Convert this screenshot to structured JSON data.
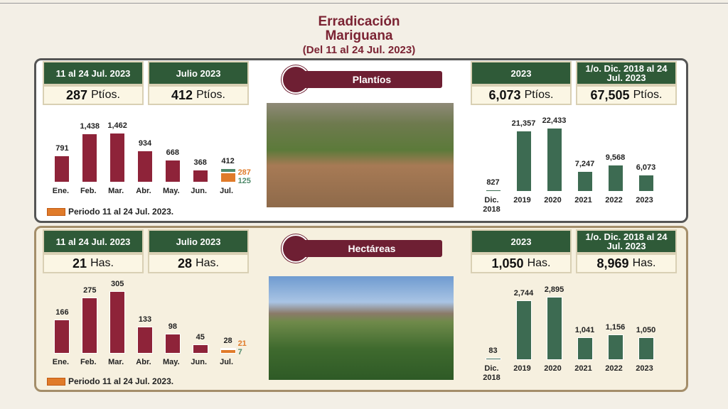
{
  "title": "Erradicación",
  "subtitle": "Mariguana",
  "period": "(Del 11 al 24 Jul. 2023)",
  "panels": [
    {
      "label": "Plantíos",
      "boxes": [
        {
          "title": "11 al 24 Jul. 2023",
          "value": "287",
          "unit": "Ptíos."
        },
        {
          "title": "Julio 2023",
          "value": "412",
          "unit": "Ptíos."
        },
        {
          "title": "2023",
          "value": "6,073",
          "unit": "Ptíos."
        },
        {
          "title": "1/o. Dic. 2018 al 24 Jul. 2023",
          "value": "67,505",
          "unit": "Ptíos."
        }
      ]
    },
    {
      "label": "Hectáreas",
      "boxes": [
        {
          "title": "11 al 24 Jul. 2023",
          "value": "21",
          "unit": "Has."
        },
        {
          "title": "Julio 2023",
          "value": "28",
          "unit": "Has."
        },
        {
          "title": "2023",
          "value": "1,050",
          "unit": "Has."
        },
        {
          "title": "1/o. Dic. 2018 al 24 Jul. 2023",
          "value": "8,969",
          "unit": "Has."
        }
      ]
    }
  ],
  "chart_data": [
    {
      "type": "bar",
      "stacked": true,
      "categories": [
        "Ene.",
        "Feb.",
        "Mar.",
        "Abr.",
        "May.",
        "Jun.",
        "Jul."
      ],
      "series": [
        {
          "color": "#8e2339",
          "values": [
            791,
            1438,
            1462,
            934,
            668,
            368,
            null
          ],
          "value_labels": [
            "791",
            "1,438",
            "1,462",
            "934",
            "668",
            "368",
            null
          ]
        },
        {
          "name": "Periodo 11 al 24 Jul. 2023.",
          "color": "#e07b2a",
          "values": [
            null,
            null,
            null,
            null,
            null,
            null,
            287
          ]
        },
        {
          "color": "#4f8a6b",
          "values": [
            null,
            null,
            null,
            null,
            null,
            null,
            125
          ]
        }
      ],
      "stack_totals": [
        null,
        null,
        null,
        null,
        null,
        null,
        412
      ]
    },
    {
      "type": "bar",
      "categories": [
        "Dic. 2018",
        "2019",
        "2020",
        "2021",
        "2022",
        "2023"
      ],
      "values": [
        827,
        21357,
        22433,
        7247,
        9568,
        6073
      ],
      "value_labels": [
        "827",
        "21,357",
        "22,433",
        "7,247",
        "9,568",
        "6,073"
      ],
      "color": "#3d6b52"
    },
    {
      "type": "bar",
      "stacked": true,
      "categories": [
        "Ene.",
        "Feb.",
        "Mar.",
        "Abr.",
        "May.",
        "Jun.",
        "Jul."
      ],
      "series": [
        {
          "color": "#8e2339",
          "values": [
            166,
            275,
            305,
            133,
            98,
            45,
            null
          ]
        },
        {
          "name": "Periodo 11 al 24 Jul. 2023.",
          "color": "#e07b2a",
          "values": [
            null,
            null,
            null,
            null,
            null,
            null,
            21
          ]
        },
        {
          "color": "#4f8a6b",
          "values": [
            null,
            null,
            null,
            null,
            null,
            null,
            7
          ]
        }
      ],
      "stack_totals": [
        null,
        null,
        null,
        null,
        null,
        null,
        28
      ]
    },
    {
      "type": "bar",
      "categories": [
        "Dic. 2018",
        "2019",
        "2020",
        "2021",
        "2022",
        "2023"
      ],
      "values": [
        83,
        2744,
        2895,
        1041,
        1156,
        1050
      ],
      "value_labels": [
        "83",
        "2,744",
        "2,895",
        "1,041",
        "1,156",
        "1,050"
      ],
      "color": "#3d6b52"
    }
  ]
}
